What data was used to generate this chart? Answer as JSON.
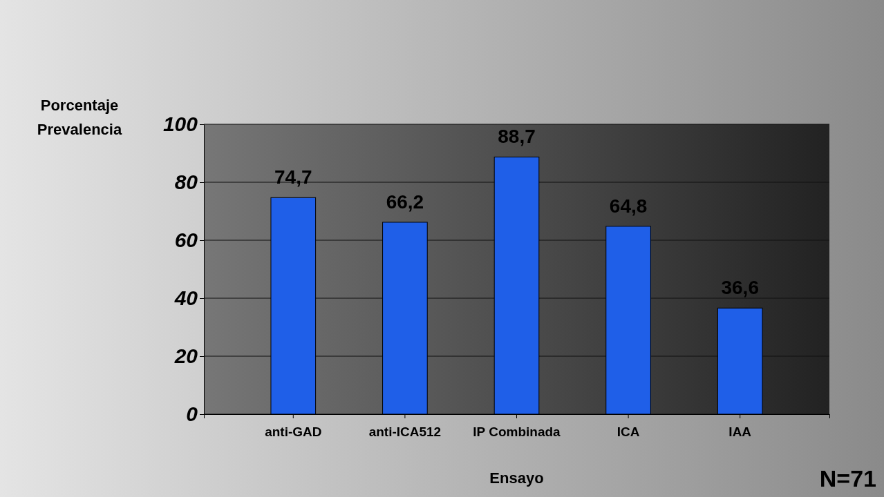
{
  "chart_data": {
    "type": "bar",
    "xlabel": "Ensayo",
    "ylabel": "Porcentaje Prevalencia",
    "categories": [
      "anti-GAD",
      "anti-ICA512",
      "IP Combinada",
      "ICA",
      "IAA"
    ],
    "values": [
      74.7,
      66.2,
      88.7,
      64.8,
      36.6
    ],
    "value_labels": [
      "74,7",
      "66,2",
      "88,7",
      "64,8",
      "36,6"
    ],
    "color": "#1f5fe8",
    "ylim": [
      0,
      100
    ],
    "yticks": [
      0,
      20,
      40,
      60,
      80,
      100
    ],
    "grid": "y",
    "annotations": [
      "N=71"
    ]
  }
}
